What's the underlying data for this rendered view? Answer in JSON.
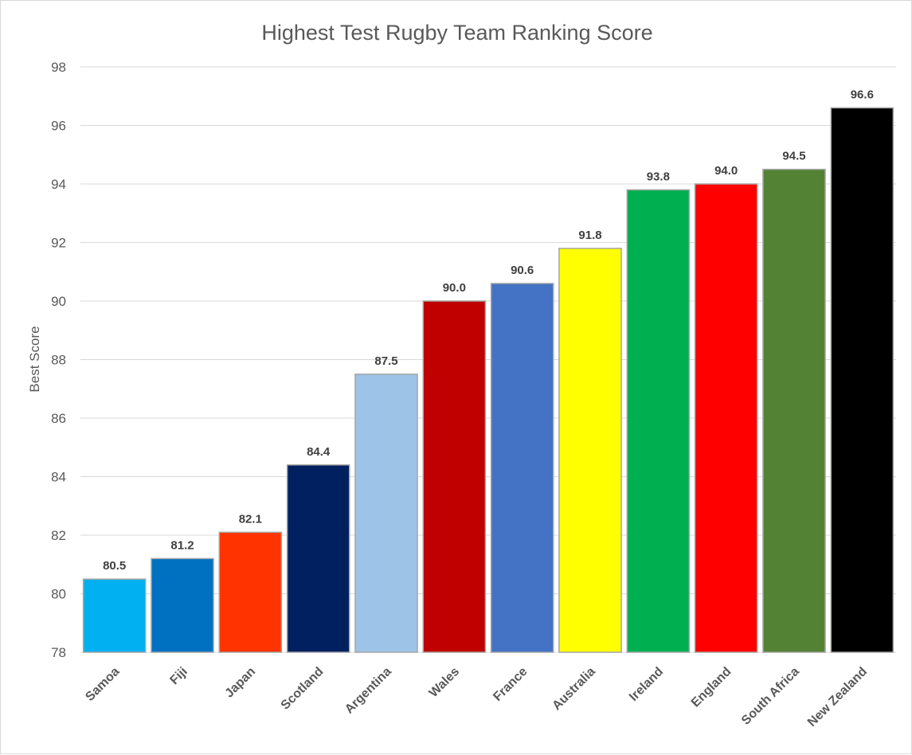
{
  "chart_data": {
    "type": "bar",
    "title": "Highest Test Rugby Team Ranking Score",
    "xlabel": "",
    "ylabel": "Best Score",
    "ylim": [
      78,
      98
    ],
    "yticks": [
      78,
      80,
      82,
      84,
      86,
      88,
      90,
      92,
      94,
      96,
      98
    ],
    "grid": true,
    "legend": "none",
    "categories": [
      "Samoa",
      "Fiji",
      "Japan",
      "Scotland",
      "Argentina",
      "Wales",
      "France",
      "Australia",
      "Ireland",
      "England",
      "South Africa",
      "New Zealand"
    ],
    "values": [
      80.5,
      81.2,
      82.1,
      84.4,
      87.5,
      90.0,
      90.6,
      91.8,
      93.8,
      94.0,
      94.5,
      96.6
    ],
    "value_labels": [
      "80.5",
      "81.2",
      "82.1",
      "84.4",
      "87.5",
      "90.0",
      "90.6",
      "91.8",
      "93.8",
      "94.0",
      "94.5",
      "96.6"
    ],
    "bar_colors": [
      "#00b0f0",
      "#0070c0",
      "#ff3300",
      "#002060",
      "#9dc3e6",
      "#c00000",
      "#4472c4",
      "#ffff00",
      "#00b050",
      "#ff0000",
      "#548235",
      "#000000"
    ]
  }
}
